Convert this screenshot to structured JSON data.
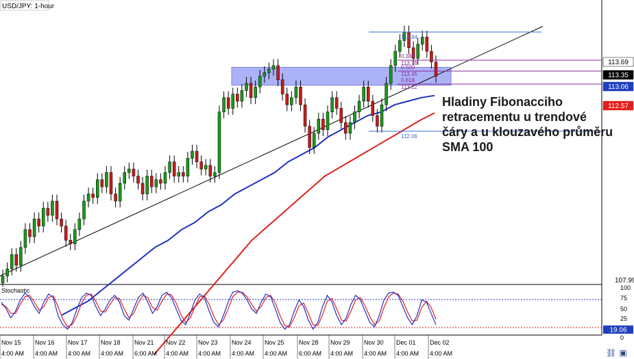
{
  "chart_data": {
    "type": "candlestick",
    "title": "USD/JPY: 1-hour",
    "annotation": "Hladiny Fibonacciho retracementu u trendové čáry a u klouzavého průměru SMA 100",
    "x_axis": {
      "date_labels": [
        "Nov 15",
        "Nov 16",
        "Nov 17",
        "Nov 18",
        "Nov 21",
        "Nov 22",
        "Nov 23",
        "Nov 24",
        "Nov 25",
        "Nov 28",
        "Nov 29",
        "Nov 30",
        "Dec 01",
        "Dec 02"
      ],
      "time_labels": [
        "4:00 AM",
        "4:00 AM",
        "4:00 AM",
        "4:00 AM",
        "6:00 AM",
        "4:00 AM",
        "4:00 AM",
        "4:00 AM",
        "4:00 AM",
        "6:00 AM",
        "4:00 AM",
        "4:00 AM",
        "4:00 AM",
        "4:00 AM"
      ]
    },
    "price_axis": {
      "visible_low_label": "107.99",
      "labels": [
        {
          "value": 113.69,
          "text": "113.69",
          "bg": "#ffffff",
          "fg": "#000000"
        },
        {
          "value": 113.35,
          "text": "113.35",
          "bg": "#000000",
          "fg": "#ffffff"
        },
        {
          "value": 113.06,
          "text": "113.06",
          "bg": "#1f3fbf",
          "fg": "#ffffff"
        },
        {
          "value": 112.57,
          "text": "112.57",
          "bg": "#e0201b",
          "fg": "#ffffff"
        }
      ],
      "range": [
        107.8,
        115.7
      ]
    },
    "fibonacci": {
      "high": 114.84,
      "low": 112.06,
      "levels": [
        {
          "ratio_text": "0.382",
          "value_text": "113.78"
        },
        {
          "ratio_text": "0.500",
          "value_text": "113.45"
        },
        {
          "ratio_text": "0.618",
          "value_text": "113.12"
        }
      ],
      "high_text": "114.84",
      "low_text": "112.06"
    },
    "resistance_zone": {
      "from": 113.35,
      "to": 113.85
    },
    "series": [
      {
        "id": "price",
        "style": "candles"
      },
      {
        "id": "sma100",
        "color": "#1f2fbf"
      },
      {
        "id": "sma200",
        "color": "#e0201b"
      },
      {
        "id": "trendline",
        "color": "#000000"
      }
    ],
    "candles": [
      108.0,
      108.2,
      108.6,
      108.3,
      108.8,
      109.3,
      109.1,
      109.6,
      109.4,
      109.9,
      109.7,
      110.1,
      109.6,
      109.4,
      109.0,
      108.9,
      109.3,
      109.6,
      110.1,
      110.3,
      110.2,
      110.7,
      110.5,
      110.9,
      110.3,
      110.1,
      110.6,
      110.9,
      111.0,
      110.8,
      110.6,
      110.3,
      110.8,
      110.5,
      110.7,
      110.6,
      110.9,
      111.2,
      110.8,
      110.9,
      110.8,
      111.3,
      111.5,
      111.2,
      111.0,
      111.1,
      110.8,
      110.9,
      112.6,
      113.0,
      112.7,
      113.1,
      112.9,
      113.2,
      113.4,
      113.0,
      113.3,
      113.6,
      113.7,
      113.8,
      113.9,
      113.5,
      113.1,
      112.8,
      113.0,
      113.3,
      112.8,
      112.2,
      111.6,
      112.0,
      112.4,
      112.1,
      112.6,
      113.0,
      112.7,
      112.3,
      112.0,
      112.3,
      112.6,
      112.9,
      113.3,
      112.9,
      112.5,
      112.2,
      112.8,
      113.4,
      113.9,
      114.3,
      114.6,
      114.84,
      114.4,
      114.1,
      114.5,
      114.7,
      114.3,
      114.0,
      113.6
    ],
    "sma100": [
      106.9,
      107.1,
      107.3,
      107.6,
      107.9,
      108.2,
      108.5,
      108.8,
      109.0,
      109.3,
      109.5,
      109.8,
      110.0,
      110.3,
      110.5,
      110.7,
      110.9,
      111.2,
      111.4,
      111.6,
      111.9,
      112.1,
      112.3,
      112.5,
      112.6,
      112.8,
      112.9,
      113.0,
      113.06
    ],
    "sma200": [
      105.8,
      106.2,
      106.6,
      107.0,
      107.4,
      107.8,
      108.2,
      108.6,
      109.0,
      109.3,
      109.6,
      109.9,
      110.2,
      110.5,
      110.8,
      111.0,
      111.2,
      111.4,
      111.6,
      111.8,
      112.0,
      112.2,
      112.4,
      112.57
    ],
    "trendline": {
      "from": 108.0,
      "to": 115.0
    },
    "stochastic": {
      "title": "Stochastic",
      "levels": [
        "100",
        "75",
        "50",
        "25",
        "0"
      ],
      "overbought": 80,
      "oversold": 20,
      "current_text": "19.06",
      "k_values": [
        70,
        55,
        35,
        50,
        75,
        90,
        80,
        60,
        45,
        70,
        88,
        80,
        40,
        20,
        10,
        25,
        55,
        80,
        90,
        85,
        60,
        40,
        55,
        75,
        85,
        70,
        40,
        30,
        55,
        80,
        90,
        70,
        45,
        60,
        85,
        92,
        80,
        55,
        30,
        20,
        45,
        75,
        88,
        80,
        50,
        25,
        15,
        40,
        70,
        92,
        95,
        90,
        75,
        55,
        45,
        70,
        88,
        82,
        55,
        25,
        10,
        20,
        50,
        75,
        60,
        30,
        10,
        25,
        60,
        85,
        70,
        40,
        20,
        35,
        65,
        85,
        75,
        50,
        25,
        15,
        40,
        75,
        90,
        92,
        85,
        60,
        35,
        20,
        40,
        75,
        70,
        45,
        20
      ],
      "d_values": [
        65,
        60,
        45,
        45,
        65,
        82,
        85,
        70,
        52,
        60,
        80,
        84,
        60,
        32,
        15,
        20,
        40,
        68,
        85,
        88,
        72,
        50,
        48,
        65,
        80,
        78,
        55,
        35,
        45,
        68,
        85,
        80,
        58,
        52,
        72,
        88,
        86,
        68,
        42,
        25,
        35,
        60,
        82,
        84,
        65,
        38,
        20,
        30,
        55,
        82,
        92,
        92,
        82,
        65,
        50,
        60,
        80,
        85,
        68,
        40,
        18,
        15,
        35,
        62,
        68,
        45,
        20,
        18,
        42,
        72,
        78,
        55,
        30,
        28,
        50,
        75,
        80,
        62,
        38,
        20,
        28,
        58,
        82,
        90,
        88,
        72,
        48,
        28,
        30,
        58,
        72,
        58,
        32
      ]
    }
  }
}
